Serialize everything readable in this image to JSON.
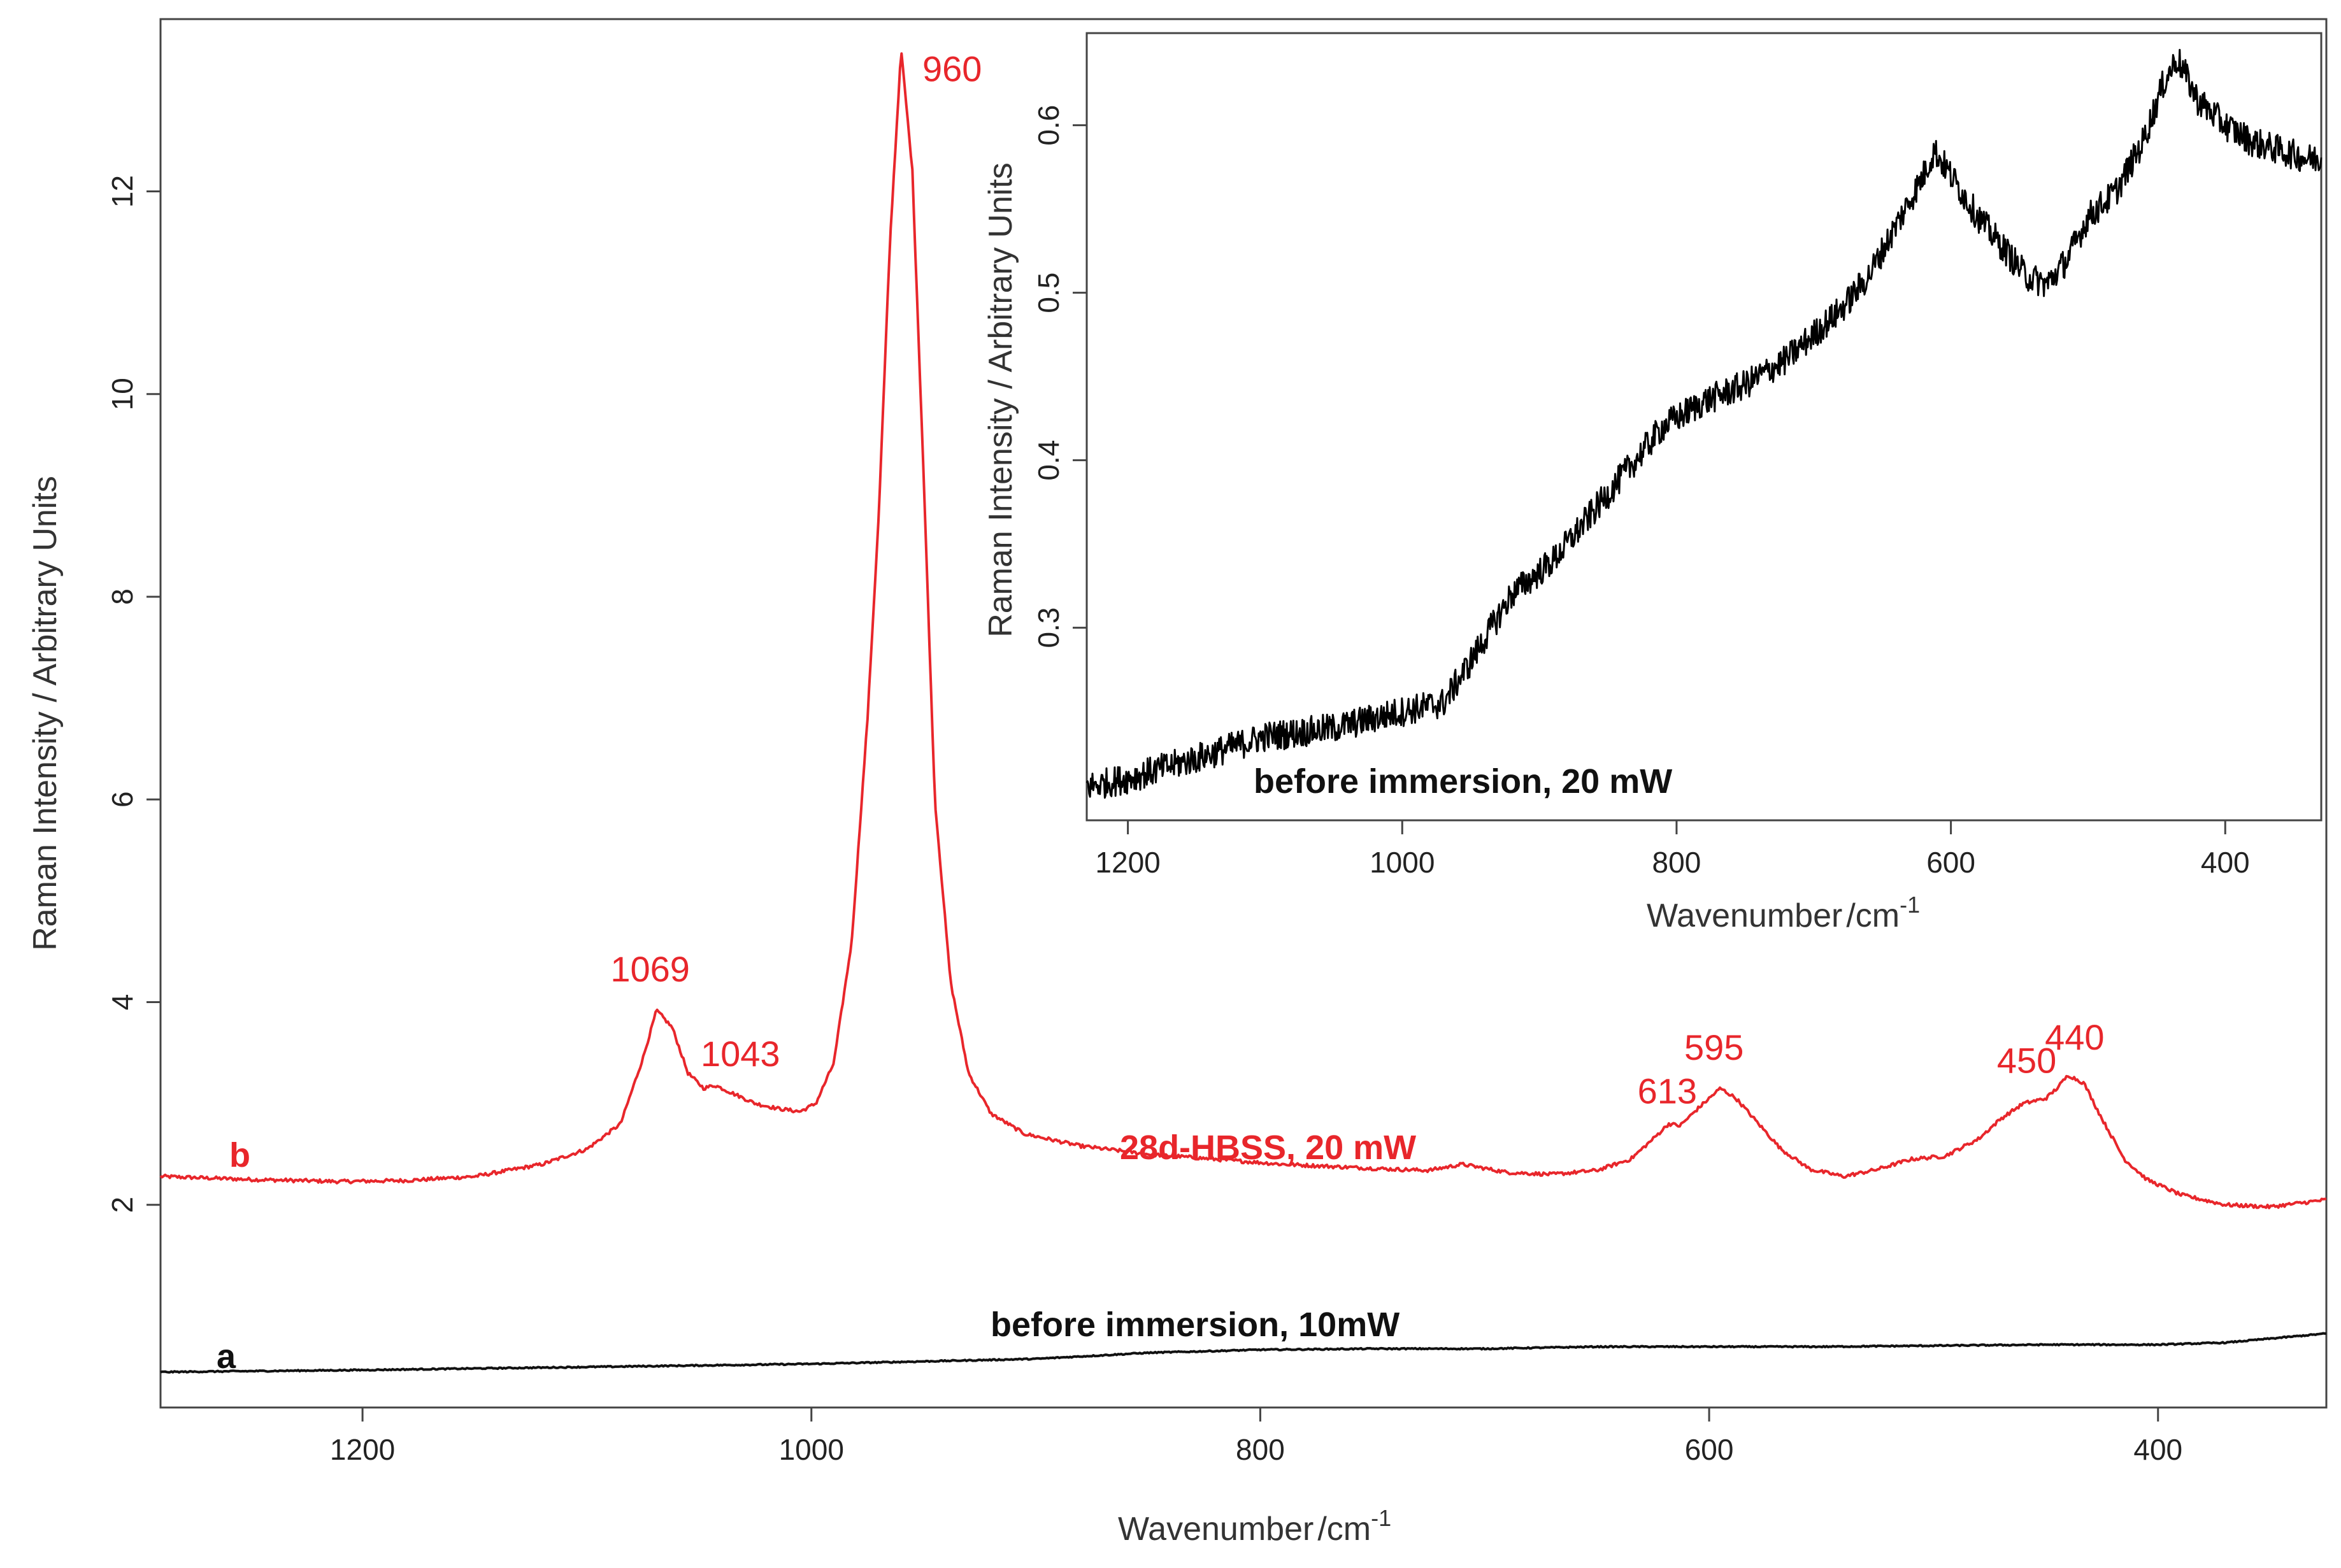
{
  "chart_data": [
    {
      "id": "main",
      "type": "line",
      "xlabel": "Wavenumber",
      "xunit": "cm",
      "xunit_exp": "-1",
      "ylabel": "Raman Intensity / Arbitrary Units",
      "xlim": [
        1290,
        325
      ],
      "ylim": [
        0.0,
        13.7
      ],
      "xticks": [
        1200,
        1000,
        800,
        600,
        400
      ],
      "yticks": [
        2,
        4,
        6,
        8,
        10,
        12
      ],
      "series": [
        {
          "name": "28d-HBSS, 20 mW",
          "letter": "b",
          "color": "#e8262b",
          "x": [
            1290,
            1250,
            1210,
            1180,
            1150,
            1120,
            1100,
            1085,
            1075,
            1069,
            1062,
            1055,
            1048,
            1043,
            1035,
            1025,
            1015,
            1005,
            998,
            990,
            982,
            975,
            970,
            965,
            960,
            955,
            950,
            945,
            938,
            930,
            920,
            905,
            880,
            850,
            820,
            790,
            760,
            740,
            725,
            710,
            690,
            670,
            650,
            635,
            625,
            618,
            613,
            605,
            595,
            588,
            578,
            568,
            555,
            540,
            525,
            510,
            495,
            480,
            470,
            460,
            450,
            445,
            440,
            433,
            425,
            415,
            405,
            390,
            370,
            350,
            325
          ],
          "y": [
            2.28,
            2.25,
            2.23,
            2.24,
            2.28,
            2.4,
            2.55,
            2.8,
            3.45,
            3.92,
            3.75,
            3.3,
            3.15,
            3.18,
            3.1,
            3.0,
            2.95,
            2.92,
            3.0,
            3.4,
            4.6,
            6.8,
            8.8,
            11.5,
            13.4,
            12.2,
            9.2,
            6.0,
            4.2,
            3.3,
            2.9,
            2.7,
            2.58,
            2.5,
            2.45,
            2.4,
            2.37,
            2.35,
            2.34,
            2.4,
            2.32,
            2.3,
            2.34,
            2.45,
            2.65,
            2.8,
            2.78,
            2.95,
            3.15,
            3.05,
            2.8,
            2.55,
            2.35,
            2.28,
            2.35,
            2.45,
            2.48,
            2.65,
            2.85,
            3.0,
            3.05,
            3.15,
            3.28,
            3.2,
            2.85,
            2.45,
            2.25,
            2.1,
            2.0,
            1.98,
            2.05
          ]
        },
        {
          "name": "before immersion, 10mW",
          "letter": "a",
          "color": "#111111",
          "x": [
            1290,
            1200,
            1100,
            1000,
            900,
            850,
            800,
            750,
            700,
            650,
            600,
            550,
            500,
            450,
            400,
            370,
            350,
            325
          ],
          "y": [
            0.35,
            0.37,
            0.4,
            0.43,
            0.48,
            0.54,
            0.57,
            0.58,
            0.58,
            0.6,
            0.6,
            0.6,
            0.61,
            0.62,
            0.62,
            0.64,
            0.68,
            0.73
          ]
        }
      ],
      "annotations": [
        {
          "text": "960",
          "x": 960,
          "y": 13.4
        },
        {
          "text": "1069",
          "x": 1069,
          "y": 3.92
        },
        {
          "text": "1043",
          "x": 1043,
          "y": 3.18
        },
        {
          "text": "613",
          "x": 613,
          "y": 2.78
        },
        {
          "text": "595",
          "x": 595,
          "y": 3.15
        },
        {
          "text": "450",
          "x": 450,
          "y": 3.05
        },
        {
          "text": "440",
          "x": 440,
          "y": 3.28
        }
      ]
    },
    {
      "id": "inset",
      "type": "line",
      "xlabel": "Wavenumber",
      "xunit": "cm",
      "xunit_exp": "-1",
      "ylabel": "Raman Intensity / Arbitrary Units",
      "xlim": [
        1230,
        330
      ],
      "ylim": [
        0.185,
        0.655
      ],
      "xticks": [
        1200,
        1000,
        800,
        600,
        400
      ],
      "yticks": [
        0.3,
        0.4,
        0.5,
        0.6
      ],
      "series": [
        {
          "name": "before immersion, 20 mW",
          "color": "#000000",
          "x": [
            1230,
            1200,
            1150,
            1100,
            1050,
            1000,
            970,
            950,
            920,
            890,
            860,
            830,
            810,
            780,
            750,
            720,
            700,
            680,
            660,
            640,
            620,
            612,
            600,
            580,
            560,
            545,
            530,
            515,
            500,
            480,
            460,
            445,
            435,
            420,
            400,
            380,
            360,
            340,
            330
          ],
          "y": [
            0.205,
            0.21,
            0.222,
            0.235,
            0.24,
            0.25,
            0.255,
            0.28,
            0.32,
            0.34,
            0.37,
            0.4,
            0.42,
            0.435,
            0.445,
            0.46,
            0.475,
            0.49,
            0.51,
            0.54,
            0.57,
            0.585,
            0.57,
            0.545,
            0.525,
            0.51,
            0.505,
            0.52,
            0.545,
            0.56,
            0.59,
            0.625,
            0.64,
            0.615,
            0.6,
            0.59,
            0.585,
            0.58,
            0.58
          ]
        }
      ]
    }
  ],
  "labels": {
    "series_b_letter": "b",
    "series_a_letter": "a",
    "series_b_note": "28d-HBSS, 20 mW",
    "series_a_note": "before immersion, 10mW",
    "inset_note": "before immersion, 20 mW"
  },
  "colors": {
    "red": "#e8262b",
    "black": "#111111"
  }
}
